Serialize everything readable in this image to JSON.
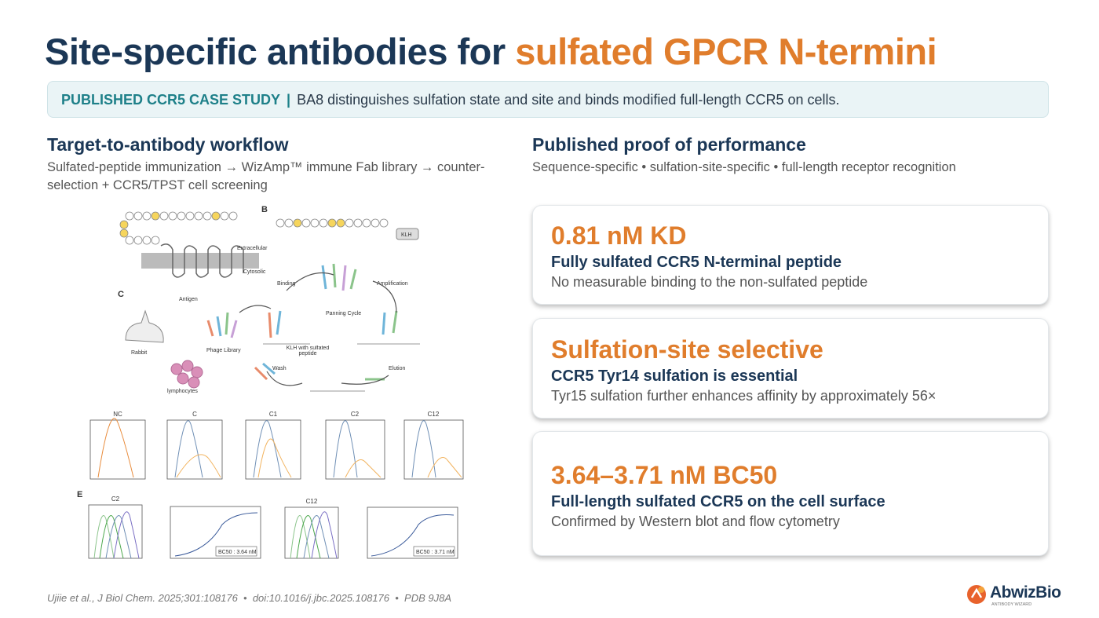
{
  "header": {
    "title_main": "Site-specific antibodies for",
    "title_highlight": "sulfated GPCR N-termini"
  },
  "banner": {
    "label": "PUBLISHED CCR5 CASE STUDY",
    "separator": "|",
    "text": "BA8 distinguishes sulfation state and site and binds modified full-length CCR5 on cells."
  },
  "left": {
    "heading": "Target-to-antibody workflow",
    "subtitle": "Sulfated-peptide immunization → WizAmp™ immune Fab library → counter-selection + CCR5/TPST cell screening"
  },
  "figure": {
    "panels": [
      "B",
      "C",
      "E"
    ],
    "labels": {
      "extracellular": "Extracellular",
      "cytosolic": "Cytosolic",
      "antigen": "Antigen",
      "rabbit": "Rabbit",
      "phage": "Phage Library",
      "lymphocytes": "lymphocytes",
      "binding": "Binding",
      "amplification": "Amplification",
      "panning": "Panning Cycle",
      "wash": "Wash",
      "elution": "Elution",
      "klh": "KLH",
      "klh_peptide": "KLH with sulfated peptide"
    },
    "histograms": [
      "NC",
      "C",
      "C1",
      "C2",
      "C12"
    ],
    "flow_titles": [
      "C2",
      "C12"
    ],
    "bc50": [
      "BC50 : 3.64 nM",
      "BC50 : 3.71 nM"
    ]
  },
  "right": {
    "heading": "Published proof of performance",
    "subtitle": "Sequence-specific • sulfation-site-specific • full-length receptor recognition",
    "cards": [
      {
        "value": "0.81 nM KD",
        "title": "Fully sulfated CCR5 N-terminal peptide",
        "text": "No measurable binding to the non-sulfated peptide"
      },
      {
        "value": "Sulfation-site selective",
        "title": "CCR5 Tyr14 sulfation is essential",
        "text": "Tyr15 sulfation further enhances affinity by approximately 56×"
      },
      {
        "value": "3.64–3.71 nM BC50",
        "title": "Full-length sulfated CCR5 on the cell surface",
        "text": "Confirmed by Western blot and flow cytometry"
      }
    ]
  },
  "footer": {
    "citation": "Ujiie et al., J Biol Chem. 2025;301:108176  •  doi:10.1016/j.jbc.2025.108176  •  PDB 9J8A"
  },
  "logo": {
    "name": "AbwizBio",
    "tagline": "ANTIBODY WIZARD"
  }
}
